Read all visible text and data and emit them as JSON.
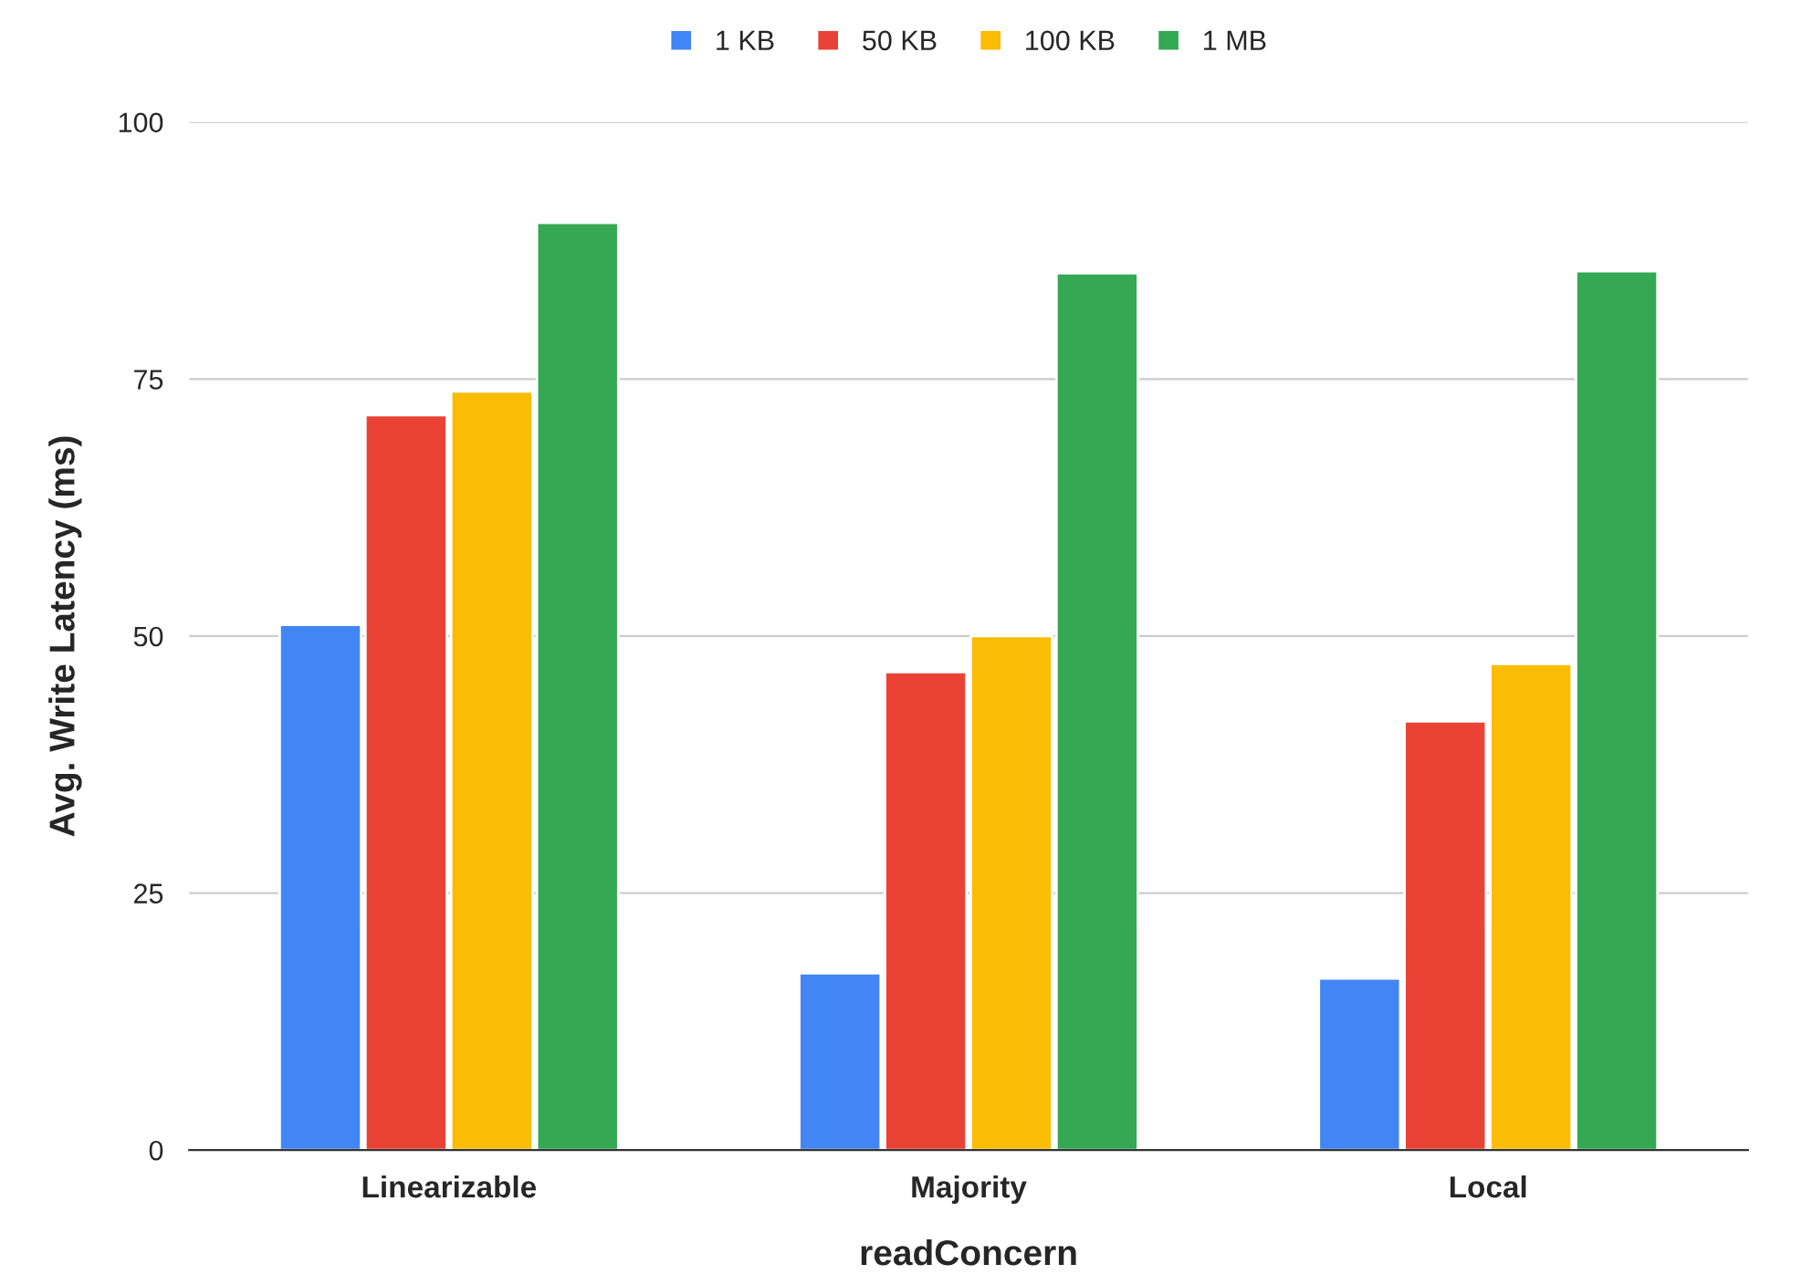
{
  "chart_data": {
    "type": "bar",
    "xlabel": "readConcern",
    "ylabel": "Avg. Write Latency (ms)",
    "categories": [
      "Linearizable",
      "Majority",
      "Local"
    ],
    "series": [
      {
        "name": "1 KB",
        "color": "#4285f4",
        "values": [
          51.1,
          17.2,
          16.7
        ]
      },
      {
        "name": "50 KB",
        "color": "#ea4335",
        "values": [
          71.5,
          46.5,
          41.7
        ]
      },
      {
        "name": "100 KB",
        "color": "#fbbc04",
        "values": [
          73.8,
          50.0,
          47.3
        ]
      },
      {
        "name": "1 MB",
        "color": "#34a853",
        "values": [
          90.2,
          85.3,
          85.5
        ]
      }
    ],
    "ylim": [
      0,
      100
    ],
    "yticks": [
      0,
      25,
      50,
      75,
      100
    ],
    "grid": "y",
    "legend": "top"
  }
}
